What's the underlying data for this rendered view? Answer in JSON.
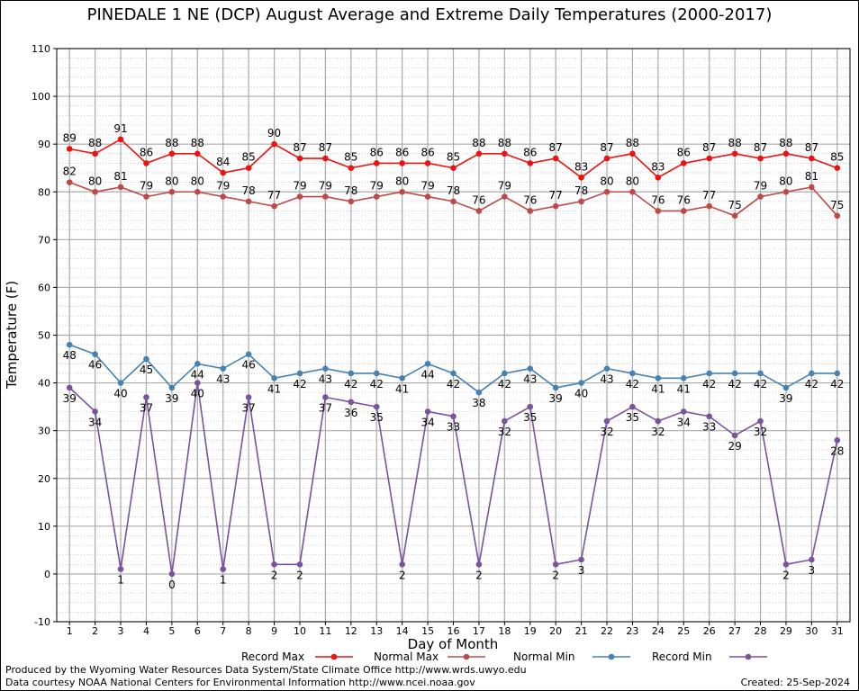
{
  "chart_data": {
    "type": "line",
    "title": "PINEDALE 1 NE (DCP) August Average and Extreme Daily Temperatures (2000-2017)",
    "xlabel": "Day of Month",
    "ylabel": "Temperature (F)",
    "xlim": [
      0.5,
      31.5
    ],
    "ylim": [
      -10,
      110
    ],
    "yticks": [
      "-10",
      "0",
      "10",
      "20",
      "30",
      "40",
      "50",
      "60",
      "70",
      "80",
      "90",
      "100",
      "110"
    ],
    "x": [
      1,
      2,
      3,
      4,
      5,
      6,
      7,
      8,
      9,
      10,
      11,
      12,
      13,
      14,
      15,
      16,
      17,
      18,
      19,
      20,
      21,
      22,
      23,
      24,
      25,
      26,
      27,
      28,
      29,
      30,
      31
    ],
    "grid": true,
    "legend_position": "bottom",
    "series": [
      {
        "name": "Record Max",
        "color": "#ee1111",
        "label_pos": "above",
        "values": [
          89,
          88,
          91,
          86,
          88,
          88,
          84,
          85,
          90,
          87,
          87,
          85,
          86,
          86,
          86,
          85,
          88,
          88,
          86,
          87,
          83,
          87,
          88,
          83,
          86,
          87,
          88,
          87,
          88,
          87,
          85
        ]
      },
      {
        "name": "Normal Max",
        "color": "#c04848",
        "label_pos": "above",
        "values": [
          82,
          80,
          81,
          79,
          80,
          80,
          79,
          78,
          77,
          79,
          79,
          78,
          79,
          80,
          79,
          78,
          76,
          79,
          76,
          77,
          78,
          80,
          80,
          76,
          76,
          77,
          75,
          79,
          80,
          81,
          75
        ]
      },
      {
        "name": "Normal Min",
        "color": "#4682b4",
        "label_pos": "below",
        "values": [
          48,
          46,
          40,
          45,
          39,
          44,
          43,
          46,
          41,
          42,
          43,
          42,
          42,
          41,
          44,
          42,
          38,
          42,
          43,
          39,
          40,
          43,
          42,
          41,
          41,
          42,
          42,
          42,
          39,
          42,
          42
        ]
      },
      {
        "name": "Record Min",
        "color": "#7b52a0",
        "label_pos": "below",
        "values": [
          39,
          34,
          1,
          37,
          0,
          40,
          1,
          37,
          2,
          2,
          37,
          36,
          35,
          2,
          34,
          33,
          2,
          32,
          35,
          2,
          3,
          32,
          35,
          32,
          34,
          33,
          29,
          32,
          2,
          3,
          28
        ]
      }
    ]
  },
  "footer": {
    "produced_by": "Produced by the Wyoming Water Resources Data System/State Climate Office http://www.wrds.uwyo.edu",
    "courtesy": "Data courtesy NOAA National Centers for Environmental Information http://www.ncei.noaa.gov",
    "created": "Created:  25-Sep-2024"
  }
}
